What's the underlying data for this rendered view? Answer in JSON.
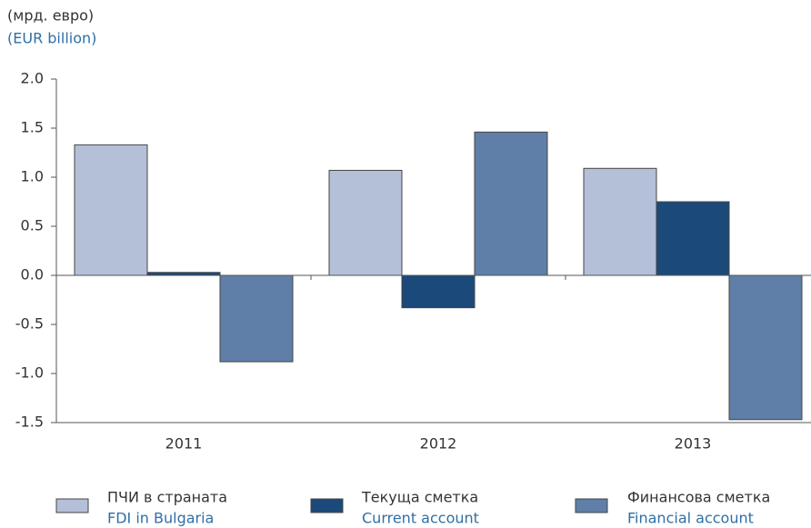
{
  "chart_data": {
    "type": "bar",
    "y_label": "(мрд. евро)",
    "y_label_en": "(EUR billion)",
    "categories": [
      "2011",
      "2012",
      "2013"
    ],
    "series": [
      {
        "name": "ПЧИ в страната",
        "name_en": "FDI in Bulgaria",
        "color": "#b4bfd8",
        "values": [
          1.33,
          1.07,
          1.09
        ]
      },
      {
        "name": "Текуща сметка",
        "name_en": "Current account",
        "color": "#1b4a7a",
        "values": [
          0.03,
          -0.33,
          0.75
        ]
      },
      {
        "name": "Финансова сметка",
        "name_en": "Financial account",
        "color": "#5f7fa8",
        "values": [
          -0.88,
          1.46,
          -1.47
        ]
      }
    ],
    "ylim": [
      -1.5,
      2.0
    ],
    "yticks": [
      {
        "value": 2,
        "label": "2.0"
      },
      1.5,
      {
        "value": 1,
        "label": "1.0"
      },
      0.5,
      {
        "value": 0,
        "label": "0.0"
      },
      -0.5,
      {
        "value": -1,
        "label": "-1.0"
      },
      -1.5
    ],
    "grid": false
  }
}
